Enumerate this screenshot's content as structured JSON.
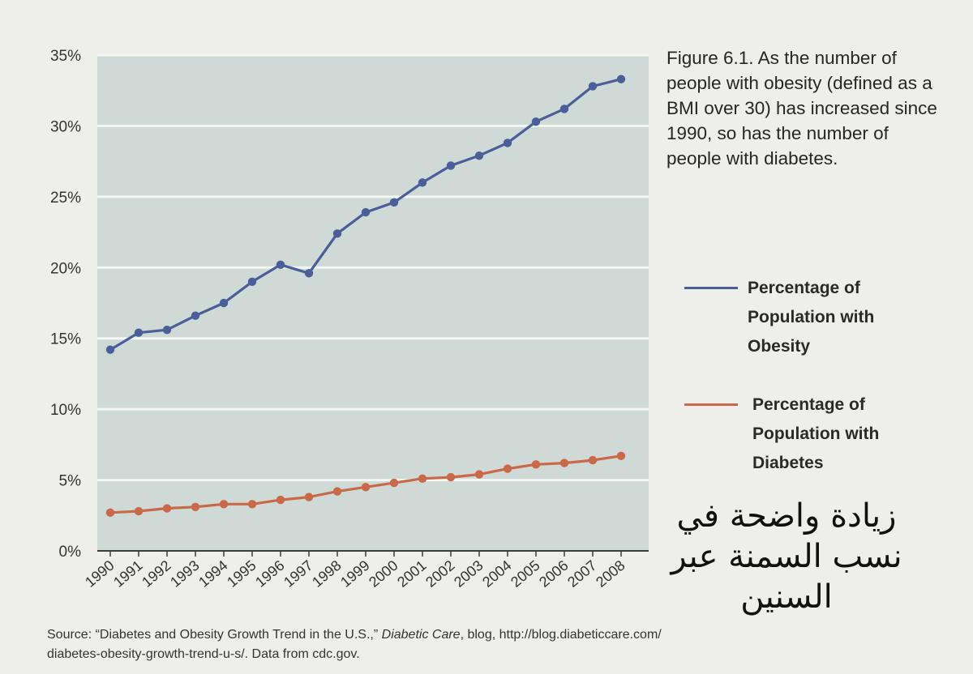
{
  "chart_data": {
    "type": "line",
    "categories": [
      "1990",
      "1991",
      "1992",
      "1993",
      "1994",
      "1995",
      "1996",
      "1997",
      "1998",
      "1999",
      "2000",
      "2001",
      "2002",
      "2003",
      "2004",
      "2005",
      "2006",
      "2007",
      "2008"
    ],
    "series": [
      {
        "name": "Percentage of Population with Obesity",
        "color": "#4a5e9a",
        "values": [
          14.2,
          15.4,
          15.6,
          16.6,
          17.5,
          19.0,
          20.2,
          19.6,
          22.4,
          23.9,
          24.6,
          26.0,
          27.2,
          27.9,
          28.8,
          30.3,
          31.2,
          32.8,
          33.3
        ]
      },
      {
        "name": "Percentage of Population with Diabetes",
        "color": "#c9694a",
        "values": [
          2.7,
          2.8,
          3.0,
          3.1,
          3.3,
          3.3,
          3.6,
          3.8,
          4.2,
          4.5,
          4.8,
          5.1,
          5.2,
          5.4,
          5.8,
          6.1,
          6.2,
          6.4,
          6.7
        ]
      }
    ],
    "ylim": [
      0,
      35
    ],
    "yticks": [
      0,
      5,
      10,
      15,
      20,
      25,
      30,
      35
    ],
    "ytick_labels": [
      "0%",
      "5%",
      "10%",
      "15%",
      "20%",
      "25%",
      "30%",
      "35%"
    ],
    "grid": true,
    "legend_position": "right",
    "caption": "Figure 6.1. As the number of people with obesity (defined as a BMI over 30) has increased since 1990, so has the number of people with diabetes.",
    "legend": {
      "obesity": [
        "Percentage of",
        "Population with",
        "Obesity"
      ],
      "diabetes": [
        "Percentage of",
        "Population with",
        "Diabetes"
      ]
    }
  },
  "handwritten_note": [
    "زيادة واضحة في",
    "نسب السمنة عبر",
    "السنين"
  ],
  "source": {
    "prefix": "Source: “Diabetes and Obesity Growth Trend in the U.S.,”",
    "publication": "Diabetic Care",
    "suffix": ", blog, http://blog.diabeticcare.com/",
    "line2": "diabetes-obesity-growth-trend-u-s/. Data from cdc.gov."
  },
  "colors": {
    "plot_background": "#cfd9d5",
    "gridline": "#f4f6f4",
    "axis": "#3a3a3a",
    "obesity": "#4a5e9a",
    "diabetes": "#c9694a"
  }
}
